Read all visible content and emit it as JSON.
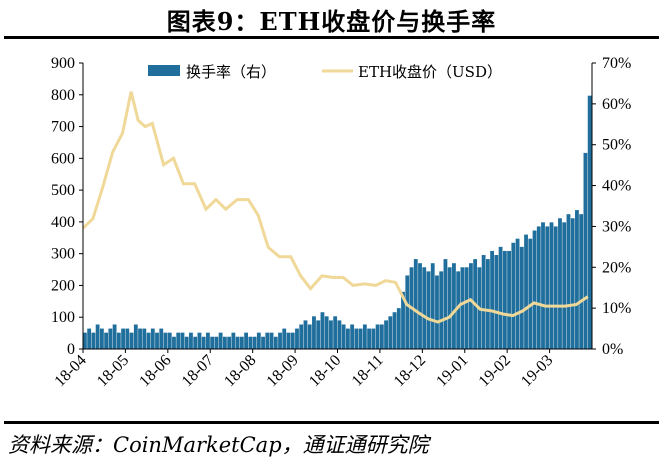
{
  "title": "图表9：ETH收盘价与换手率",
  "source": "资料来源：CoinMarketCap，通证通研究院",
  "chart_data": {
    "type": "bar+line",
    "x_tick_labels": [
      "18-04",
      "18-05",
      "18-06",
      "18-07",
      "18-08",
      "18-09",
      "18-10",
      "18-11",
      "18-12",
      "19-01",
      "19-02",
      "19-03"
    ],
    "y_left_ticks": [
      "0",
      "100",
      "200",
      "300",
      "400",
      "500",
      "600",
      "700",
      "800",
      "900"
    ],
    "y_right_ticks": [
      "0%",
      "10%",
      "20%",
      "30%",
      "40%",
      "50%",
      "60%",
      "70%"
    ],
    "y_left_range": [
      0,
      900
    ],
    "y_right_range": [
      0,
      70
    ],
    "legend_position": "top",
    "colors": {
      "bar": "#1f6e9c",
      "line": "#f0d898"
    },
    "series": [
      {
        "name": "换手率（右）",
        "axis": "right",
        "kind": "bar",
        "unit": "%",
        "monthly_samples": [
          {
            "month": "18-04",
            "values": [
              4,
              5,
              4,
              6,
              5,
              4,
              5,
              6,
              4,
              5
            ]
          },
          {
            "month": "18-05",
            "values": [
              5,
              4,
              6,
              5,
              5,
              4,
              5,
              4,
              5,
              4
            ]
          },
          {
            "month": "18-06",
            "values": [
              4,
              3,
              4,
              4,
              3,
              4,
              3,
              4,
              3,
              4
            ]
          },
          {
            "month": "18-07",
            "values": [
              3,
              3,
              4,
              3,
              3,
              4,
              3,
              3,
              4,
              3
            ]
          },
          {
            "month": "18-08",
            "values": [
              3,
              4,
              3,
              4,
              4,
              3,
              4,
              5,
              4,
              4
            ]
          },
          {
            "month": "18-09",
            "values": [
              5,
              6,
              7,
              6,
              8,
              7,
              9,
              8,
              7,
              8
            ]
          },
          {
            "month": "18-10",
            "values": [
              7,
              6,
              5,
              6,
              5,
              5,
              6,
              5,
              5,
              6
            ]
          },
          {
            "month": "18-11",
            "values": [
              6,
              7,
              8,
              9,
              10,
              14,
              18,
              20,
              22,
              21
            ]
          },
          {
            "month": "18-12",
            "values": [
              20,
              19,
              21,
              18,
              19,
              22,
              20,
              21,
              19,
              20
            ]
          },
          {
            "month": "19-01",
            "values": [
              20,
              21,
              22,
              20,
              23,
              22,
              24,
              23,
              25,
              24
            ]
          },
          {
            "month": "19-02",
            "values": [
              24,
              26,
              27,
              25,
              28,
              27,
              29,
              30,
              31,
              30
            ]
          },
          {
            "month": "19-03",
            "values": [
              31,
              30,
              32,
              31,
              33,
              32,
              34,
              33,
              48,
              62
            ]
          }
        ]
      },
      {
        "name": "ETH收盘价（USD）",
        "axis": "left",
        "kind": "line",
        "unit": "USD",
        "points": [
          [
            "18-04-01",
            380
          ],
          [
            "18-04-08",
            410
          ],
          [
            "18-04-15",
            510
          ],
          [
            "18-04-22",
            620
          ],
          [
            "18-04-29",
            680
          ],
          [
            "18-05-05",
            810
          ],
          [
            "18-05-10",
            720
          ],
          [
            "18-05-15",
            700
          ],
          [
            "18-05-20",
            710
          ],
          [
            "18-05-28",
            580
          ],
          [
            "18-06-05",
            600
          ],
          [
            "18-06-12",
            520
          ],
          [
            "18-06-20",
            520
          ],
          [
            "18-06-28",
            440
          ],
          [
            "18-07-05",
            470
          ],
          [
            "18-07-12",
            440
          ],
          [
            "18-07-20",
            470
          ],
          [
            "18-07-28",
            470
          ],
          [
            "18-08-05",
            420
          ],
          [
            "18-08-12",
            320
          ],
          [
            "18-08-20",
            290
          ],
          [
            "18-08-28",
            290
          ],
          [
            "18-09-05",
            230
          ],
          [
            "18-09-12",
            190
          ],
          [
            "18-09-20",
            230
          ],
          [
            "18-09-28",
            225
          ],
          [
            "18-10-05",
            225
          ],
          [
            "18-10-12",
            200
          ],
          [
            "18-10-20",
            205
          ],
          [
            "18-10-28",
            200
          ],
          [
            "18-11-05",
            215
          ],
          [
            "18-11-12",
            210
          ],
          [
            "18-11-20",
            140
          ],
          [
            "18-11-28",
            115
          ],
          [
            "18-12-05",
            95
          ],
          [
            "18-12-12",
            85
          ],
          [
            "18-12-20",
            100
          ],
          [
            "18-12-28",
            140
          ],
          [
            "19-01-05",
            155
          ],
          [
            "19-01-12",
            125
          ],
          [
            "19-01-20",
            120
          ],
          [
            "19-01-28",
            110
          ],
          [
            "19-02-05",
            105
          ],
          [
            "19-02-12",
            120
          ],
          [
            "19-02-20",
            145
          ],
          [
            "19-02-28",
            135
          ],
          [
            "19-03-05",
            135
          ],
          [
            "19-03-12",
            135
          ],
          [
            "19-03-20",
            140
          ],
          [
            "19-03-28",
            165
          ]
        ]
      }
    ]
  }
}
